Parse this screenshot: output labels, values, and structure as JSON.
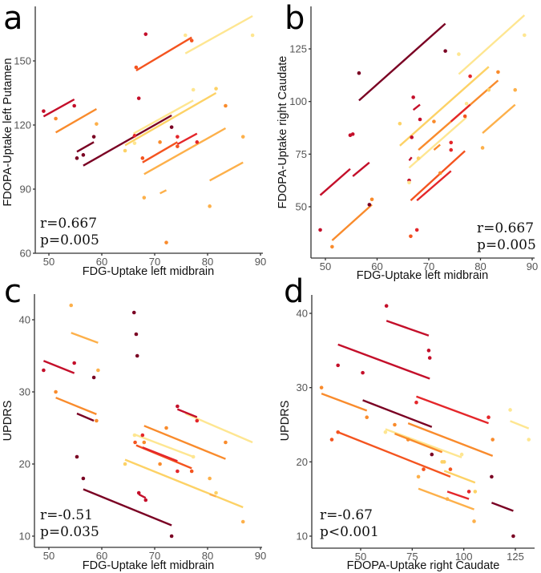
{
  "colors": {
    "maroon": "#7a0023",
    "crimson": "#c40f2a",
    "red": "#e4262a",
    "orangered": "#f4541f",
    "orange": "#f98b2c",
    "lightorange": "#fdb04a",
    "yellow": "#fdd266",
    "pale": "#fee691"
  },
  "chart_data": [
    {
      "type": "scatter",
      "letter": "a",
      "xlabel": "FDG-Uptake left midbrain",
      "ylabel": "FDOPA-Uptake left Putamen",
      "xticks": [
        50,
        60,
        70,
        80,
        90
      ],
      "yticks": [
        60,
        90,
        120,
        150
      ],
      "stat_r": "r=0.667",
      "stat_p": "p=0.005",
      "points": [
        [
          49,
          126.5,
          "crimson"
        ],
        [
          51.3,
          123,
          "orange"
        ],
        [
          54.8,
          129,
          "crimson"
        ],
        [
          55.3,
          104.5,
          "maroon"
        ],
        [
          56.5,
          106,
          "maroon"
        ],
        [
          58.5,
          114.5,
          "maroon"
        ],
        [
          59,
          120.5,
          "lightorange"
        ],
        [
          64.4,
          108,
          "yellow"
        ],
        [
          66.2,
          111.5,
          "pale"
        ],
        [
          66.2,
          115,
          "red"
        ],
        [
          66.5,
          147,
          "orangered"
        ],
        [
          67,
          132.5,
          "crimson"
        ],
        [
          68.3,
          162.5,
          "crimson"
        ],
        [
          67.7,
          104.5,
          "orangered"
        ],
        [
          68,
          86,
          "lightorange"
        ],
        [
          71,
          112,
          "orange"
        ],
        [
          72.2,
          65,
          "orange"
        ],
        [
          73.2,
          119,
          "maroon"
        ],
        [
          74.3,
          114.5,
          "red"
        ],
        [
          74.3,
          110,
          "orangered"
        ],
        [
          75.8,
          162,
          "pale"
        ],
        [
          77,
          159.5,
          "orangered"
        ],
        [
          77.3,
          136.5,
          "pale"
        ],
        [
          78,
          112,
          "red"
        ],
        [
          80.4,
          82,
          "lightorange"
        ],
        [
          81.6,
          137,
          "yellow"
        ],
        [
          83.4,
          129,
          "orange"
        ],
        [
          86.7,
          114.5,
          "lightorange"
        ],
        [
          88.5,
          162,
          "pale"
        ]
      ],
      "lines": [
        [
          49,
          124,
          54.8,
          132,
          "crimson"
        ],
        [
          51.3,
          116.5,
          59,
          127.5,
          "orange"
        ],
        [
          55.3,
          107.5,
          58.5,
          112,
          "maroon"
        ],
        [
          75.8,
          153.5,
          88.5,
          171,
          "pale"
        ],
        [
          64.4,
          110.5,
          81.6,
          135,
          "yellow"
        ],
        [
          66,
          116,
          77.3,
          131.5,
          "pale"
        ],
        [
          56.5,
          101,
          73.2,
          124.5,
          "maroon"
        ],
        [
          66.5,
          145.5,
          77,
          161,
          "orangered"
        ],
        [
          67.7,
          102.5,
          74.3,
          112,
          "orangered"
        ],
        [
          74.3,
          111,
          78,
          116,
          "red"
        ],
        [
          68,
          97,
          83.4,
          118.5,
          "lightorange"
        ],
        [
          71,
          88,
          72.2,
          89.5,
          "lightorange"
        ],
        [
          80.4,
          94,
          86.7,
          102.5,
          "lightorange"
        ]
      ]
    },
    {
      "type": "scatter",
      "letter": "b",
      "xlabel": "FDG-Uptake left midbrain",
      "ylabel": "FDOPA-Uptake right Caudate",
      "xticks": [
        50,
        60,
        70,
        80,
        90
      ],
      "yticks": [
        50,
        75,
        100,
        125
      ],
      "stat_r": "r=0.667",
      "stat_p": "p=0.005",
      "points": [
        [
          49,
          39,
          "crimson"
        ],
        [
          51.3,
          31,
          "orange"
        ],
        [
          54.8,
          84,
          "crimson"
        ],
        [
          55.3,
          84.5,
          "crimson"
        ],
        [
          56.5,
          113.5,
          "maroon"
        ],
        [
          58.5,
          51,
          "maroon"
        ],
        [
          59,
          53.5,
          "orange"
        ],
        [
          64.4,
          89.5,
          "yellow"
        ],
        [
          66.2,
          62.5,
          "crimson"
        ],
        [
          66.2,
          61.5,
          "pale"
        ],
        [
          66.5,
          36,
          "orangered"
        ],
        [
          67,
          102,
          "crimson"
        ],
        [
          66.7,
          83,
          "crimson"
        ],
        [
          67.7,
          39,
          "red"
        ],
        [
          68,
          73,
          "yellow"
        ],
        [
          68.3,
          91.5,
          "crimson"
        ],
        [
          71,
          90.5,
          "orange"
        ],
        [
          72.2,
          66,
          "orange"
        ],
        [
          73.2,
          124,
          "maroon"
        ],
        [
          74.3,
          80.5,
          "red"
        ],
        [
          74.3,
          77,
          "red"
        ],
        [
          75.8,
          122.5,
          "pale"
        ],
        [
          77,
          93,
          "orangered"
        ],
        [
          77.3,
          99,
          "pale"
        ],
        [
          78,
          112,
          "red"
        ],
        [
          80.4,
          78,
          "lightorange"
        ],
        [
          81.6,
          105.5,
          "yellow"
        ],
        [
          83.4,
          114,
          "orange"
        ],
        [
          86.7,
          105.5,
          "lightorange"
        ],
        [
          88.5,
          131.5,
          "pale"
        ]
      ],
      "lines": [
        [
          49,
          55.5,
          54.8,
          68,
          "crimson"
        ],
        [
          55.3,
          64.5,
          58.5,
          71,
          "crimson"
        ],
        [
          51.3,
          34,
          59,
          51,
          "orange"
        ],
        [
          56.5,
          100.5,
          73.2,
          137,
          "maroon"
        ],
        [
          75.8,
          113,
          88.5,
          141,
          "pale"
        ],
        [
          64.4,
          79,
          81.6,
          116.5,
          "yellow"
        ],
        [
          68,
          77,
          83.4,
          110,
          "orange"
        ],
        [
          66.2,
          68.5,
          77.3,
          92.5,
          "pale"
        ],
        [
          74.3,
          90.5,
          78,
          98.5,
          "red"
        ],
        [
          66.5,
          53,
          77,
          76.5,
          "orangered"
        ],
        [
          67.7,
          53,
          74.3,
          67,
          "red"
        ],
        [
          67,
          96,
          68.3,
          98.5,
          "crimson"
        ],
        [
          80.4,
          85,
          86.7,
          98.5,
          "lightorange"
        ],
        [
          66.2,
          72,
          66.7,
          73.5,
          "crimson"
        ],
        [
          71,
          77,
          72.2,
          79.5,
          "orange"
        ]
      ]
    },
    {
      "type": "scatter",
      "letter": "c",
      "xlabel": "FDG-Uptake left midbrain",
      "ylabel": "UPDRS",
      "xticks": [
        50,
        60,
        70,
        80,
        90
      ],
      "yticks": [
        10,
        20,
        30,
        40
      ],
      "stat_r": "r=-0.51",
      "stat_p": "p=0.035",
      "points": [
        [
          49,
          33,
          "crimson"
        ],
        [
          51.3,
          30,
          "orange"
        ],
        [
          54.2,
          42,
          "lightorange"
        ],
        [
          54.8,
          34,
          "crimson"
        ],
        [
          55.3,
          21,
          "maroon"
        ],
        [
          56.5,
          18,
          "maroon"
        ],
        [
          58.5,
          32,
          "maroon"
        ],
        [
          59,
          26,
          "orange"
        ],
        [
          59.3,
          33,
          "lightorange"
        ],
        [
          64.4,
          20,
          "yellow"
        ],
        [
          66.1,
          41,
          "maroon"
        ],
        [
          66.2,
          24,
          "pale"
        ],
        [
          66.3,
          23,
          "orangered"
        ],
        [
          66.5,
          38,
          "maroon"
        ],
        [
          66.7,
          35,
          "maroon"
        ],
        [
          67,
          16,
          "crimson"
        ],
        [
          67.7,
          24,
          "red"
        ],
        [
          68,
          23,
          "orange"
        ],
        [
          68.3,
          15,
          "crimson"
        ],
        [
          71,
          20,
          "orange"
        ],
        [
          72.2,
          25,
          "orange"
        ],
        [
          73.2,
          10,
          "maroon"
        ],
        [
          74.3,
          28,
          "crimson"
        ],
        [
          74.3,
          19,
          "red"
        ],
        [
          77,
          19,
          "orangered"
        ],
        [
          77.3,
          21,
          "pale"
        ],
        [
          78,
          26,
          "red"
        ],
        [
          80.4,
          18,
          "lightorange"
        ],
        [
          81.6,
          16,
          "yellow"
        ],
        [
          83.4,
          23,
          "orange"
        ],
        [
          86.7,
          12,
          "lightorange"
        ]
      ],
      "lines": [
        [
          49,
          34.3,
          54.8,
          32.6,
          "crimson"
        ],
        [
          54.2,
          38.2,
          59.3,
          36.8,
          "lightorange"
        ],
        [
          51.3,
          29.2,
          59,
          26.9,
          "orange"
        ],
        [
          55.3,
          27,
          58.5,
          26,
          "maroon"
        ],
        [
          56.5,
          16.5,
          73.2,
          11.5,
          "maroon"
        ],
        [
          64.4,
          20.6,
          86.7,
          14,
          "yellow"
        ],
        [
          68,
          25.3,
          83.4,
          20.7,
          "orange"
        ],
        [
          75.8,
          27,
          88.5,
          23,
          "pale"
        ],
        [
          66.2,
          24.1,
          77.3,
          21,
          "pale"
        ],
        [
          66.5,
          22.6,
          77,
          19.4,
          "orangered"
        ],
        [
          67.7,
          22.3,
          74.3,
          20.4,
          "red"
        ],
        [
          74.3,
          27.6,
          78,
          26.5,
          "crimson"
        ],
        [
          67,
          15.8,
          68.3,
          15.3,
          "crimson"
        ],
        [
          66.4,
          38,
          66.8,
          37.9,
          "maroon"
        ],
        [
          80.4,
          15.8,
          81.6,
          15.5,
          "lightorange"
        ]
      ]
    },
    {
      "type": "scatter",
      "letter": "d",
      "xlabel": "FDOPA-Uptake right Caudate",
      "ylabel": "UPDRS",
      "xticks": [
        50,
        75,
        100,
        125
      ],
      "yticks": [
        10,
        20,
        30,
        40
      ],
      "stat_r": "r=-0.67",
      "stat_p": "p<0.001",
      "points": [
        [
          31,
          30,
          "orange"
        ],
        [
          36,
          23,
          "orangered"
        ],
        [
          39,
          24,
          "orangered"
        ],
        [
          39,
          33,
          "crimson"
        ],
        [
          51,
          32,
          "crimson"
        ],
        [
          53,
          26,
          "orange"
        ],
        [
          62,
          24,
          "pale"
        ],
        [
          62.5,
          41,
          "crimson"
        ],
        [
          66.5,
          25,
          "orange"
        ],
        [
          73,
          23,
          "orange"
        ],
        [
          77,
          28,
          "red"
        ],
        [
          78,
          18,
          "lightorange"
        ],
        [
          80.5,
          19,
          "orangered"
        ],
        [
          83,
          35,
          "crimson"
        ],
        [
          83.5,
          34,
          "crimson"
        ],
        [
          84.5,
          21,
          "maroon"
        ],
        [
          89.5,
          20,
          "yellow"
        ],
        [
          90.5,
          20,
          "yellow"
        ],
        [
          92,
          15,
          "lightorange"
        ],
        [
          93.5,
          19,
          "orangered"
        ],
        [
          99,
          21,
          "pale"
        ],
        [
          102.5,
          16,
          "red"
        ],
        [
          105.5,
          16,
          "yellow"
        ],
        [
          105,
          12,
          "lightorange"
        ],
        [
          112,
          26,
          "red"
        ],
        [
          113.5,
          18,
          "maroon"
        ],
        [
          114,
          23,
          "orange"
        ],
        [
          122.5,
          27,
          "pale"
        ],
        [
          124,
          10,
          "maroon"
        ],
        [
          131.5,
          23,
          "pale"
        ]
      ],
      "lines": [
        [
          62.5,
          39,
          83,
          37,
          "crimson"
        ],
        [
          39,
          35.8,
          83.5,
          31.2,
          "crimson"
        ],
        [
          31,
          29.2,
          53,
          26.9,
          "orange"
        ],
        [
          51,
          28.3,
          84.5,
          24.7,
          "maroon"
        ],
        [
          77,
          28.8,
          112,
          25.2,
          "red"
        ],
        [
          122.5,
          25.5,
          131.5,
          24.5,
          "pale"
        ],
        [
          73,
          25.2,
          114,
          20.8,
          "orange"
        ],
        [
          62,
          24.4,
          99,
          20.6,
          "pale"
        ],
        [
          66.5,
          23.8,
          89.5,
          21.3,
          "orange"
        ],
        [
          39,
          24,
          93.5,
          18,
          "orangered"
        ],
        [
          90.5,
          18.8,
          105.5,
          17.2,
          "yellow"
        ],
        [
          92,
          16,
          102.5,
          15,
          "red"
        ],
        [
          78,
          16.4,
          105,
          13.6,
          "lightorange"
        ],
        [
          113.5,
          14.5,
          124,
          13.4,
          "maroon"
        ]
      ]
    }
  ]
}
